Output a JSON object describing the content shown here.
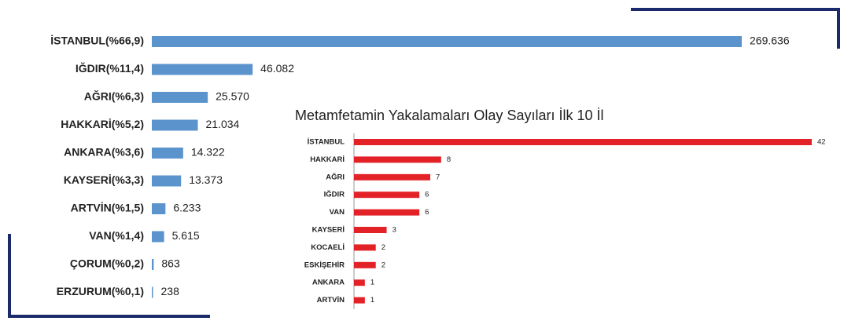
{
  "chart_data": [
    {
      "type": "hbar",
      "color": "#5b93cc",
      "categories": [
        "İSTANBUL(%66,9)",
        "IĞDIR(%11,4)",
        "AĞRI(%6,3)",
        "HAKKARİ(%5,2)",
        "ANKARA(%3,6)",
        "KAYSERİ(%3,3)",
        "ARTVİN(%1,5)",
        "VAN(%1,4)",
        "ÇORUM(%0,2)",
        "ERZURUM(%0,1)"
      ],
      "values": [
        269636,
        46082,
        25570,
        21034,
        14322,
        13373,
        6233,
        5615,
        863,
        238
      ],
      "value_labels": [
        "269.636",
        "46.082",
        "25.570",
        "21.034",
        "14.322",
        "13.373",
        "6.233",
        "5.615",
        "863",
        "238"
      ]
    },
    {
      "type": "hbar",
      "color": "#e32228",
      "title": "Metamfetamin Yakalamaları Olay Sayıları İlk 10 İl",
      "categories": [
        "İSTANBUL",
        "HAKKARİ",
        "AĞRI",
        "IĞDIR",
        "VAN",
        "KAYSERİ",
        "KOCAELİ",
        "ESKİŞEHİR",
        "ANKARA",
        "ARTVİN"
      ],
      "values": [
        42,
        8,
        7,
        6,
        6,
        3,
        2,
        2,
        1,
        1
      ]
    }
  ]
}
